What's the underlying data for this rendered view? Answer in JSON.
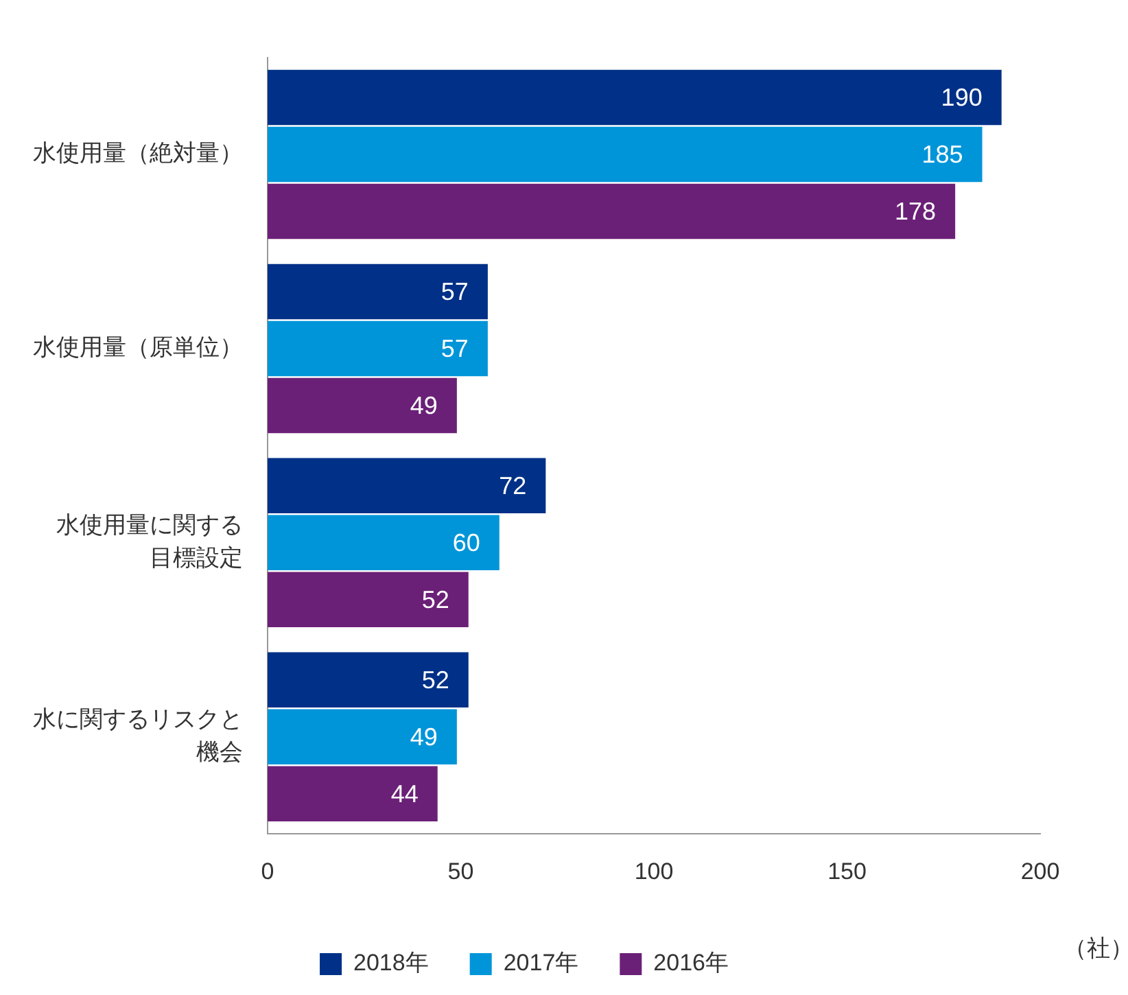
{
  "chart_data": {
    "type": "bar",
    "orientation": "horizontal",
    "categories": [
      "水使用量（絶対量）",
      "水使用量（原単位）",
      "水使用量に関する目標設定",
      "水に関するリスクと機会"
    ],
    "series": [
      {
        "name": "2018年",
        "color": "#003087",
        "values": [
          190,
          57,
          72,
          52
        ]
      },
      {
        "name": "2017年",
        "color": "#0095d9",
        "values": [
          185,
          57,
          60,
          49
        ]
      },
      {
        "name": "2016年",
        "color": "#6b2077",
        "values": [
          178,
          49,
          52,
          44
        ]
      }
    ],
    "xlim": [
      0,
      200
    ],
    "xticks": [
      0,
      50,
      100,
      150,
      200
    ],
    "xlabel": "（社）",
    "data_labels": true,
    "grid": false,
    "legend": "bottom"
  }
}
